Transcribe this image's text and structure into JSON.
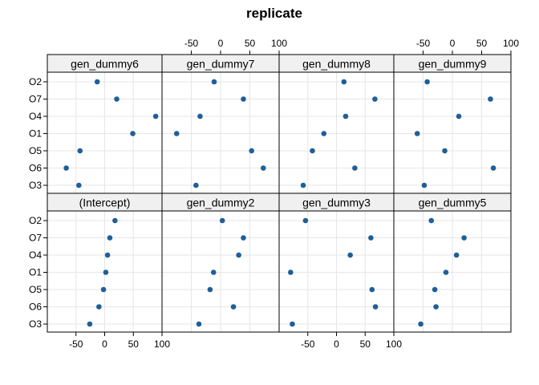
{
  "chart_data": {
    "type": "scatter",
    "title": "replicate",
    "xlabel": "",
    "ylabel": "",
    "xlim": [
      -100,
      100
    ],
    "x_ticks": [
      -50,
      0,
      50,
      100
    ],
    "x_tick_labels": [
      "-50",
      "0",
      "50",
      "100"
    ],
    "grid": true,
    "legend": "none",
    "point_color": "#1f5f99",
    "strip_color": "#f0f0f0",
    "categories": [
      "O2",
      "O7",
      "O4",
      "O1",
      "O5",
      "O6",
      "O3"
    ],
    "panels": [
      {
        "name": "gen_dummy6",
        "values": [
          -13,
          21,
          89,
          49,
          -43,
          -67,
          -45
        ]
      },
      {
        "name": "gen_dummy7",
        "values": [
          -11,
          39,
          -35,
          -75,
          53,
          73,
          -42
        ]
      },
      {
        "name": "gen_dummy8",
        "values": [
          13,
          67,
          16,
          -22,
          -42,
          32,
          -58
        ]
      },
      {
        "name": "gen_dummy9",
        "values": [
          -43,
          65,
          11,
          -60,
          -13,
          70,
          -48
        ]
      },
      {
        "name": "(Intercept)",
        "values": [
          18,
          9,
          5,
          2,
          -2,
          -10,
          -26
        ]
      },
      {
        "name": "gen_dummy2",
        "values": [
          3,
          39,
          31,
          -12,
          -18,
          22,
          -37
        ]
      },
      {
        "name": "gen_dummy3",
        "values": [
          -54,
          60,
          24,
          -80,
          62,
          68,
          -77
        ]
      },
      {
        "name": "gen_dummy5",
        "values": [
          -36,
          20,
          7,
          -11,
          -30,
          -28,
          -54
        ]
      }
    ]
  }
}
